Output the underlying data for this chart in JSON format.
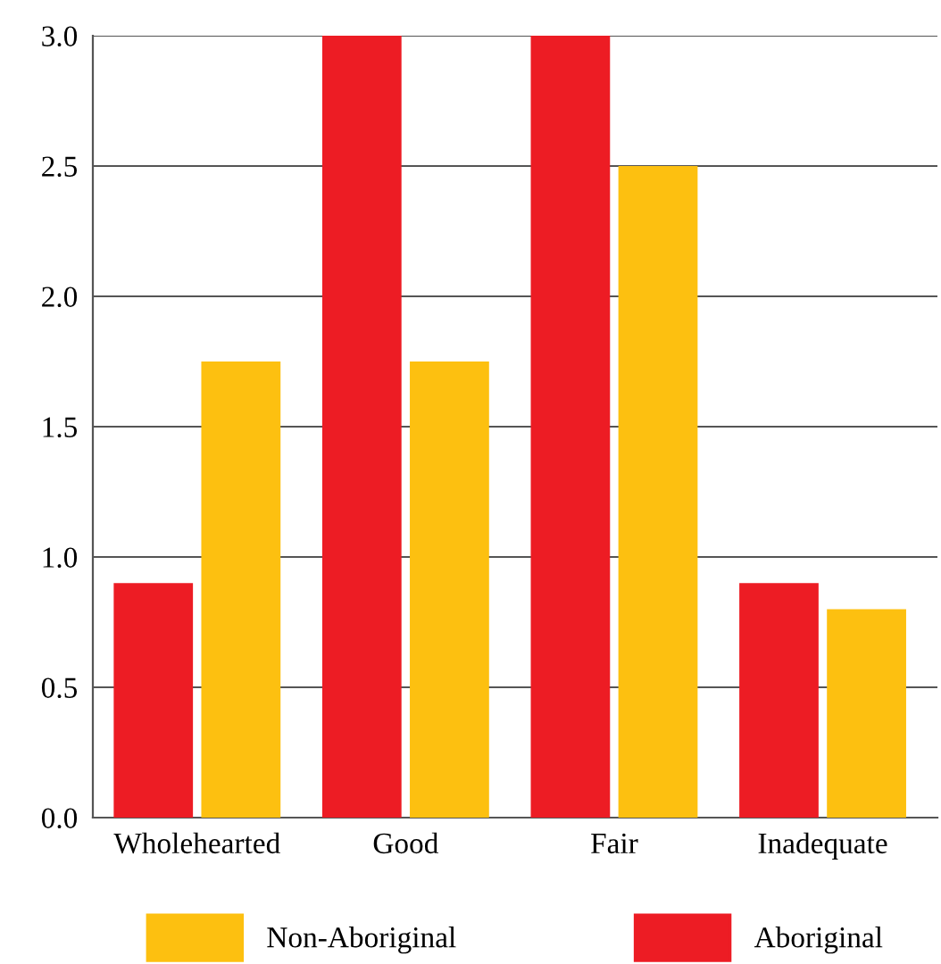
{
  "chart_data": {
    "type": "bar",
    "categories": [
      "Wholehearted",
      "Good",
      "Fair",
      "Inadequate"
    ],
    "series": [
      {
        "name": "Aboriginal",
        "color": "#ed1c24",
        "values": [
          0.9,
          3.0,
          3.0,
          0.9
        ]
      },
      {
        "name": "Non-Aboriginal",
        "color": "#fdc010",
        "values": [
          1.75,
          1.75,
          2.5,
          0.8
        ]
      }
    ],
    "ylim": [
      0,
      3
    ],
    "yticks": [
      {
        "value": 0,
        "label": "0.0"
      },
      {
        "value": 0.5,
        "label": "0.5"
      },
      {
        "value": 1,
        "label": "1.0"
      },
      {
        "value": 1.5,
        "label": "1.5"
      },
      {
        "value": 2,
        "label": "2.0"
      },
      {
        "value": 2.5,
        "label": "2.5"
      },
      {
        "value": 3,
        "label": "3.0"
      }
    ],
    "grid": "y",
    "legend": "bottom"
  }
}
